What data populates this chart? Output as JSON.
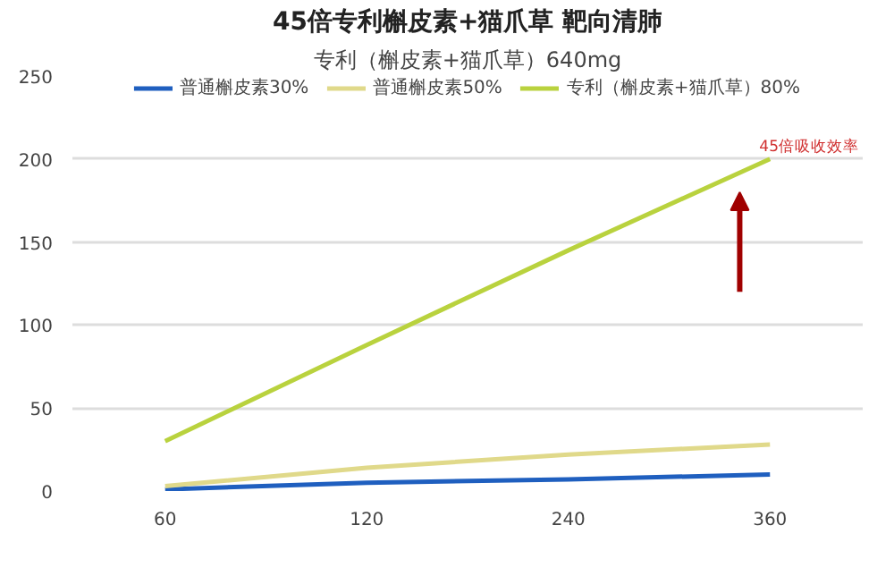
{
  "chart_data": {
    "type": "line",
    "title": "45倍专利槲皮素+猫爪草 靶向清肺",
    "subtitle": "专利（槲皮素+猫爪草）640mg",
    "categories": [
      "60",
      "120",
      "240",
      "360"
    ],
    "series": [
      {
        "name": "普通槲皮素30%",
        "color": "#1f5fbf",
        "values": [
          1,
          5,
          7,
          10
        ]
      },
      {
        "name": "普通槲皮素50%",
        "color": "#e0d98a",
        "values": [
          3,
          14,
          22,
          28
        ]
      },
      {
        "name": "专利（槲皮素+猫爪草）80%",
        "color": "#b9d23e",
        "values": [
          30,
          88,
          145,
          200
        ]
      }
    ],
    "ylim": [
      0,
      250
    ],
    "yticks": [
      0,
      50,
      100,
      150,
      200,
      250
    ],
    "grid": "y",
    "legend": "top",
    "marker": "none",
    "line_style": "solid",
    "annotations": [
      "45倍吸收效率"
    ]
  }
}
